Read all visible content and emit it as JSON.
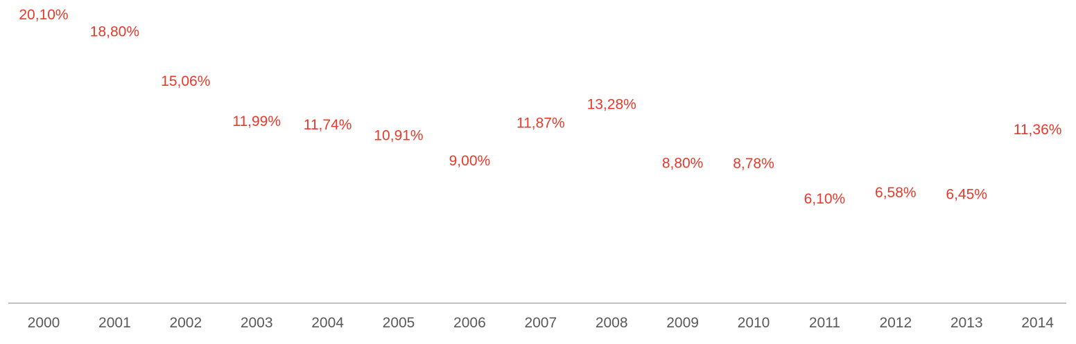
{
  "chart_data": {
    "type": "line",
    "categories": [
      "2000",
      "2001",
      "2002",
      "2003",
      "2004",
      "2005",
      "2006",
      "2007",
      "2008",
      "2009",
      "2010",
      "2011",
      "2012",
      "2013",
      "2014"
    ],
    "series": [
      {
        "values": [
          20.1,
          18.8,
          15.06,
          11.99,
          11.74,
          10.91,
          9.0,
          11.87,
          13.28,
          8.8,
          8.78,
          6.1,
          6.58,
          6.45,
          11.36
        ],
        "labels": [
          "20,10%",
          "18,80%",
          "15,06%",
          "11,99%",
          "11,74%",
          "10,91%",
          "9,00%",
          "11,87%",
          "13,28%",
          "8,80%",
          "8,78%",
          "6,10%",
          "6,58%",
          "6,45%",
          "11,36%"
        ]
      }
    ],
    "title": "",
    "xlabel": "",
    "ylabel": "",
    "line_visible": false,
    "grid": false,
    "colors": {
      "label": "#e8392b",
      "axis": "#808080",
      "tick_text": "#595959"
    }
  }
}
